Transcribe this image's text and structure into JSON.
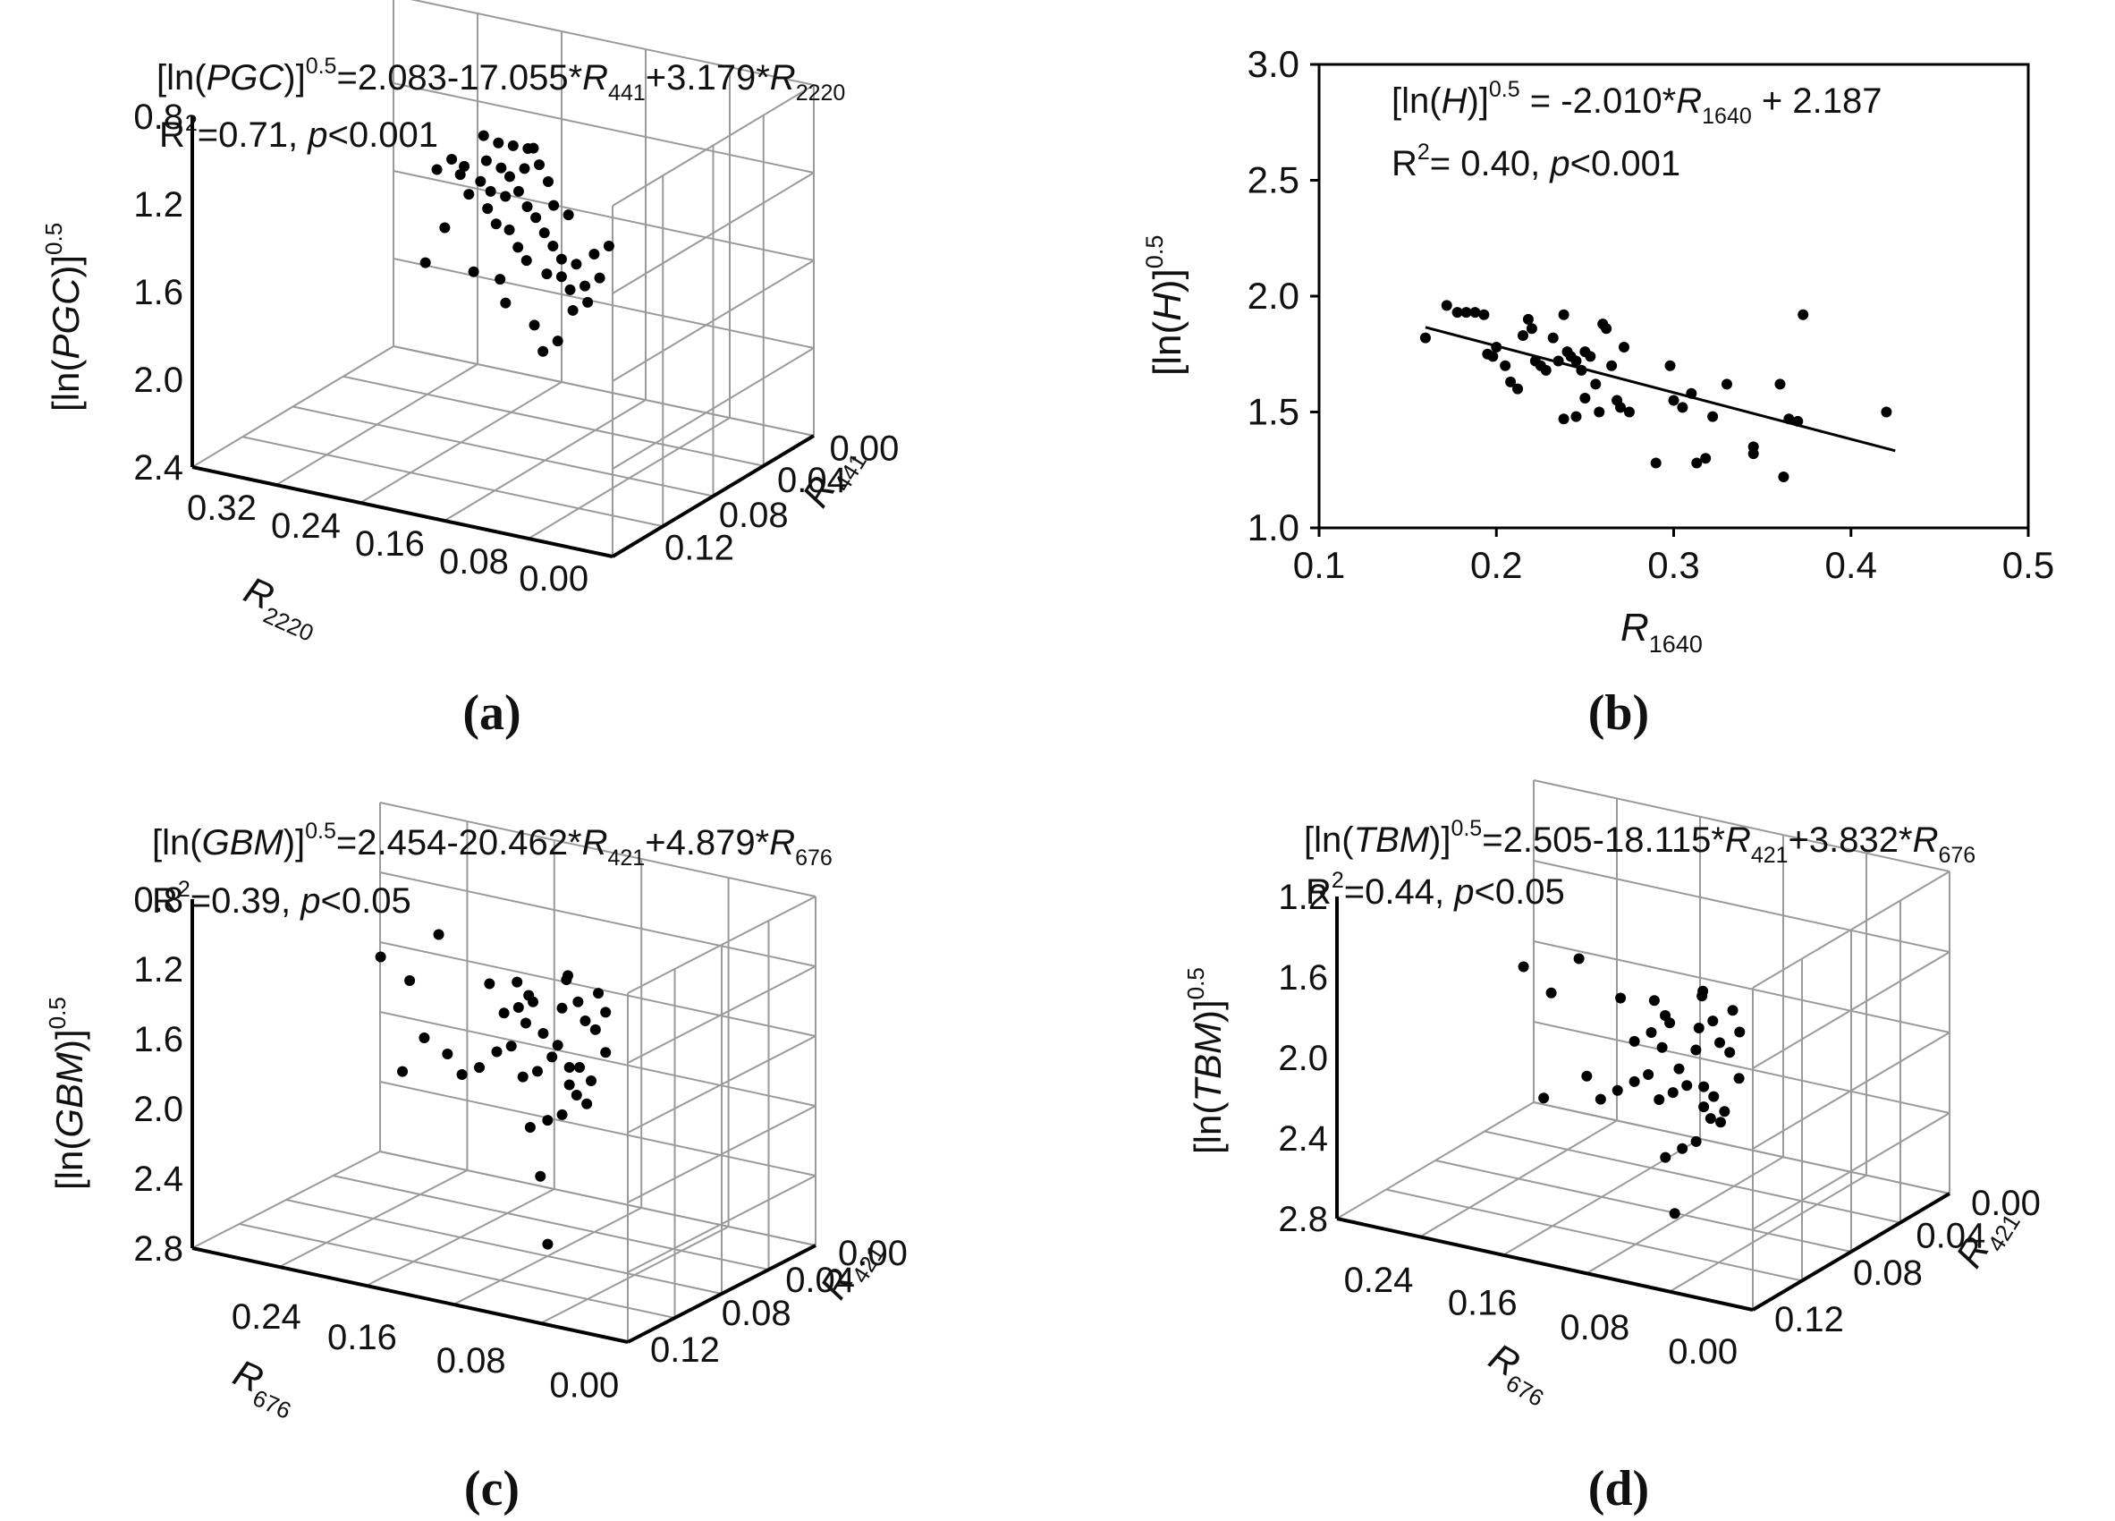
{
  "chart_data": [
    {
      "type": "scatter",
      "panel": "(a)",
      "dims": "3d",
      "equation": {
        "lhs": "[ln(",
        "var": "PGC",
        "rhs": ")]",
        "exp": "0.5",
        "body": "=2.083-17.055*",
        "t1": "R",
        "s1": "441",
        "mid": "+3.179*",
        "t2": "R",
        "s2": "2220"
      },
      "stats": {
        "pre": "R",
        "sup": "2",
        "mid": "=0.71, ",
        "p": "p",
        "post": "<0.001"
      },
      "zlabel": {
        "lhs": "[ln(",
        "var": "PGC",
        "rhs": ")]",
        "exp": "0.5"
      },
      "xlabel": {
        "t": "R",
        "s": "2220"
      },
      "ylabel": {
        "t": "R",
        "s": "441"
      },
      "zticks": [
        "2.4",
        "2.0",
        "1.6",
        "1.2",
        "0.8"
      ],
      "xticks": [
        "0.32",
        "0.24",
        "0.16",
        "0.08",
        "0.00"
      ],
      "yticks": [
        "0.12",
        "0.08",
        "0.04",
        "0.00"
      ],
      "zlim": [
        0.8,
        2.4
      ],
      "xlim": [
        0.36,
        0.0
      ],
      "ylim": [
        0.0,
        0.13
      ],
      "points": [
        [
          0.19,
          0.06,
          2.25
        ],
        [
          0.18,
          0.062,
          2.22
        ],
        [
          0.17,
          0.064,
          2.21
        ],
        [
          0.16,
          0.066,
          2.2
        ],
        [
          0.15,
          0.062,
          2.23
        ],
        [
          0.185,
          0.058,
          2.15
        ],
        [
          0.175,
          0.06,
          2.12
        ],
        [
          0.165,
          0.058,
          2.1
        ],
        [
          0.155,
          0.06,
          2.14
        ],
        [
          0.145,
          0.062,
          2.16
        ],
        [
          0.2,
          0.055,
          2.12
        ],
        [
          0.19,
          0.058,
          2.05
        ],
        [
          0.18,
          0.057,
          2.02
        ],
        [
          0.17,
          0.059,
          2.0
        ],
        [
          0.16,
          0.06,
          2.03
        ],
        [
          0.15,
          0.058,
          1.98
        ],
        [
          0.14,
          0.056,
          1.95
        ],
        [
          0.13,
          0.054,
          1.9
        ],
        [
          0.12,
          0.052,
          1.86
        ],
        [
          0.11,
          0.05,
          1.82
        ],
        [
          0.1,
          0.052,
          1.8
        ],
        [
          0.12,
          0.048,
          1.75
        ],
        [
          0.11,
          0.05,
          1.74
        ],
        [
          0.1,
          0.048,
          1.7
        ],
        [
          0.09,
          0.05,
          1.72
        ],
        [
          0.08,
          0.052,
          1.76
        ],
        [
          0.085,
          0.048,
          1.66
        ],
        [
          0.095,
          0.046,
          1.62
        ],
        [
          0.14,
          0.05,
          1.78
        ],
        [
          0.15,
          0.052,
          1.82
        ],
        [
          0.16,
          0.054,
          1.88
        ],
        [
          0.17,
          0.053,
          1.9
        ],
        [
          0.18,
          0.055,
          1.95
        ],
        [
          0.2,
          0.058,
          1.98
        ],
        [
          0.21,
          0.06,
          2.05
        ],
        [
          0.22,
          0.062,
          2.1
        ],
        [
          0.23,
          0.06,
          2.05
        ],
        [
          0.21,
          0.05,
          1.85
        ],
        [
          0.22,
          0.045,
          1.7
        ],
        [
          0.12,
          0.04,
          1.55
        ],
        [
          0.1,
          0.04,
          1.5
        ],
        [
          0.11,
          0.038,
          1.45
        ],
        [
          0.13,
          0.06,
          2.0
        ],
        [
          0.12,
          0.062,
          1.96
        ],
        [
          0.14,
          0.064,
          2.08
        ],
        [
          0.16,
          0.048,
          1.68
        ],
        [
          0.18,
          0.046,
          1.7
        ],
        [
          0.15,
          0.044,
          1.6
        ],
        [
          0.09,
          0.056,
          1.84
        ],
        [
          0.08,
          0.058,
          1.88
        ]
      ]
    },
    {
      "type": "scatter",
      "panel": "(b)",
      "dims": "2d",
      "equation": {
        "lhs": "[ln(",
        "var": "H",
        "rhs": ")]",
        "exp": "0.5",
        "body": " = -2.010*",
        "t1": "R",
        "s1": "1640",
        "mid": " + 2.187"
      },
      "stats": {
        "pre": "R",
        "sup": "2",
        "mid": "= 0.40, ",
        "p": "p",
        "post": "<0.001"
      },
      "ylabel": {
        "lhs": "[ln(",
        "var": "H",
        "rhs": ")]",
        "exp": "0.5"
      },
      "xlabel": {
        "t": "R",
        "s": "1640"
      },
      "xticks": [
        "0.1",
        "0.2",
        "0.3",
        "0.4",
        "0.5"
      ],
      "yticks": [
        "3.0",
        "2.5",
        "2.0",
        "1.5",
        "1.0"
      ],
      "xlim": [
        0.1,
        0.5
      ],
      "ylim": [
        1.0,
        3.0
      ],
      "fit": {
        "slope": -2.01,
        "intercept": 2.187,
        "x_range": [
          0.16,
          0.425
        ]
      },
      "points": [
        [
          0.16,
          1.82
        ],
        [
          0.172,
          1.96
        ],
        [
          0.178,
          1.93
        ],
        [
          0.183,
          1.93
        ],
        [
          0.188,
          1.93
        ],
        [
          0.193,
          1.92
        ],
        [
          0.195,
          1.75
        ],
        [
          0.198,
          1.74
        ],
        [
          0.2,
          1.78
        ],
        [
          0.205,
          1.7
        ],
        [
          0.208,
          1.63
        ],
        [
          0.212,
          1.6
        ],
        [
          0.215,
          1.83
        ],
        [
          0.218,
          1.9
        ],
        [
          0.22,
          1.86
        ],
        [
          0.222,
          1.72
        ],
        [
          0.225,
          1.7
        ],
        [
          0.228,
          1.68
        ],
        [
          0.232,
          1.82
        ],
        [
          0.235,
          1.72
        ],
        [
          0.238,
          1.92
        ],
        [
          0.24,
          1.76
        ],
        [
          0.242,
          1.74
        ],
        [
          0.245,
          1.72
        ],
        [
          0.248,
          1.68
        ],
        [
          0.25,
          1.76
        ],
        [
          0.253,
          1.74
        ],
        [
          0.256,
          1.62
        ],
        [
          0.26,
          1.88
        ],
        [
          0.262,
          1.86
        ],
        [
          0.265,
          1.7
        ],
        [
          0.268,
          1.55
        ],
        [
          0.27,
          1.52
        ],
        [
          0.272,
          1.78
        ],
        [
          0.238,
          1.47
        ],
        [
          0.245,
          1.48
        ],
        [
          0.25,
          1.56
        ],
        [
          0.258,
          1.5
        ],
        [
          0.275,
          1.5
        ],
        [
          0.29,
          1.28
        ],
        [
          0.298,
          1.7
        ],
        [
          0.3,
          1.55
        ],
        [
          0.305,
          1.52
        ],
        [
          0.31,
          1.58
        ],
        [
          0.313,
          1.28
        ],
        [
          0.318,
          1.3
        ],
        [
          0.322,
          1.48
        ],
        [
          0.33,
          1.62
        ],
        [
          0.345,
          1.35
        ],
        [
          0.345,
          1.32
        ],
        [
          0.36,
          1.62
        ],
        [
          0.362,
          1.22
        ],
        [
          0.365,
          1.47
        ],
        [
          0.37,
          1.46
        ],
        [
          0.373,
          1.92
        ],
        [
          0.42,
          1.5
        ]
      ]
    },
    {
      "type": "scatter",
      "panel": "(c)",
      "dims": "3d",
      "equation": {
        "lhs": "[ln(",
        "var": "GBM",
        "rhs": ")]",
        "exp": "0.5",
        "body": "=2.454-20.462*",
        "t1": "R",
        "s1": "421",
        "mid": "+4.879*",
        "t2": "R",
        "s2": "676"
      },
      "stats": {
        "pre": "R",
        "sup": "2",
        "mid": "=0.39, ",
        "p": "p",
        "post": "<0.05"
      },
      "zlabel": {
        "lhs": "[ln(",
        "var": "GBM",
        "rhs": ")]",
        "exp": "0.5"
      },
      "xlabel": {
        "t": "R",
        "s": "676"
      },
      "ylabel": {
        "t": "R",
        "s": "421"
      },
      "zticks": [
        "2.8",
        "2.4",
        "2.0",
        "1.6",
        "1.2",
        "0.8"
      ],
      "xticks": [
        "0.24",
        "0.16",
        "0.08",
        "0.00"
      ],
      "yticks": [
        "0.12",
        "0.08",
        "0.04",
        "0.00"
      ],
      "zlim": [
        0.8,
        2.8
      ],
      "xlim": [
        0.3,
        0.0
      ],
      "ylim": [
        0.0,
        0.13
      ],
      "points": [
        [
          0.22,
          0.05,
          2.4
        ],
        [
          0.2,
          0.05,
          2.3
        ],
        [
          0.18,
          0.05,
          2.6
        ],
        [
          0.15,
          0.055,
          2.35
        ],
        [
          0.14,
          0.055,
          2.2
        ],
        [
          0.13,
          0.055,
          2.25
        ],
        [
          0.12,
          0.055,
          2.3
        ],
        [
          0.12,
          0.05,
          2.2
        ],
        [
          0.11,
          0.052,
          2.15
        ],
        [
          0.1,
          0.052,
          2.1
        ],
        [
          0.1,
          0.055,
          2.3
        ],
        [
          0.09,
          0.056,
          2.35
        ],
        [
          0.085,
          0.056,
          2.25
        ],
        [
          0.08,
          0.058,
          2.2
        ],
        [
          0.09,
          0.05,
          2.0
        ],
        [
          0.1,
          0.048,
          2.05
        ],
        [
          0.11,
          0.048,
          1.95
        ],
        [
          0.12,
          0.048,
          1.9
        ],
        [
          0.13,
          0.05,
          2.05
        ],
        [
          0.14,
          0.05,
          2.0
        ],
        [
          0.095,
          0.054,
          2.5
        ],
        [
          0.09,
          0.05,
          1.9
        ],
        [
          0.085,
          0.05,
          1.85
        ],
        [
          0.08,
          0.052,
          1.8
        ],
        [
          0.07,
          0.055,
          2.1
        ],
        [
          0.075,
          0.06,
          2.3
        ],
        [
          0.08,
          0.06,
          2.4
        ],
        [
          0.15,
          0.048,
          1.9
        ],
        [
          0.16,
          0.046,
          1.85
        ],
        [
          0.17,
          0.046,
          1.95
        ],
        [
          0.2,
          0.045,
          1.8
        ],
        [
          0.18,
          0.04,
          2.05
        ],
        [
          0.1,
          0.045,
          1.7
        ],
        [
          0.11,
          0.043,
          1.65
        ],
        [
          0.09,
          0.045,
          1.75
        ],
        [
          0.1,
          0.04,
          1.4
        ],
        [
          0.09,
          0.035,
          1.05
        ],
        [
          0.12,
          0.052,
          2.35
        ],
        [
          0.13,
          0.054,
          2.4
        ],
        [
          0.1,
          0.058,
          2.45
        ],
        [
          0.085,
          0.052,
          2.0
        ],
        [
          0.075,
          0.05,
          1.95
        ]
      ]
    },
    {
      "type": "scatter",
      "panel": "(d)",
      "dims": "3d",
      "equation": {
        "lhs": "[ln(",
        "var": "TBM",
        "rhs": ")]",
        "exp": "0.5",
        "body": "=2.505-18.115*",
        "t1": "R",
        "s1": "421",
        "mid": "+3.832*",
        "t2": "R",
        "s2": "676"
      },
      "stats": {
        "pre": "R",
        "sup": "2",
        "mid": "=0.44, ",
        "p": "p",
        "post": "<0.05"
      },
      "zlabel": {
        "lhs": "[ln(",
        "var": "TBM",
        "rhs": ")]",
        "exp": "0.5"
      },
      "xlabel": {
        "t": "R",
        "s": "676"
      },
      "ylabel": {
        "t": "R",
        "s": "421"
      },
      "zticks": [
        "2.8",
        "2.4",
        "2.0",
        "1.6",
        "1.2"
      ],
      "xticks": [
        "0.24",
        "0.16",
        "0.08",
        "0.00"
      ],
      "yticks": [
        "0.12",
        "0.08",
        "0.04",
        "0.00"
      ],
      "zlim": [
        1.2,
        2.8
      ],
      "xlim": [
        0.3,
        0.0
      ],
      "ylim": [
        0.0,
        0.13
      ],
      "points": [
        [
          0.22,
          0.05,
          2.35
        ],
        [
          0.2,
          0.05,
          2.25
        ],
        [
          0.18,
          0.05,
          2.45
        ],
        [
          0.15,
          0.05,
          2.3
        ],
        [
          0.14,
          0.05,
          2.1
        ],
        [
          0.13,
          0.052,
          2.15
        ],
        [
          0.12,
          0.055,
          2.2
        ],
        [
          0.12,
          0.05,
          2.1
        ],
        [
          0.11,
          0.052,
          2.0
        ],
        [
          0.1,
          0.054,
          2.1
        ],
        [
          0.1,
          0.056,
          2.2
        ],
        [
          0.09,
          0.056,
          2.25
        ],
        [
          0.085,
          0.056,
          2.15
        ],
        [
          0.08,
          0.058,
          2.1
        ],
        [
          0.09,
          0.05,
          1.95
        ],
        [
          0.1,
          0.048,
          1.95
        ],
        [
          0.11,
          0.048,
          1.9
        ],
        [
          0.12,
          0.048,
          1.85
        ],
        [
          0.13,
          0.05,
          1.95
        ],
        [
          0.14,
          0.05,
          1.9
        ],
        [
          0.095,
          0.054,
          2.4
        ],
        [
          0.09,
          0.05,
          1.85
        ],
        [
          0.085,
          0.05,
          1.8
        ],
        [
          0.08,
          0.052,
          1.78
        ],
        [
          0.07,
          0.055,
          2.0
        ],
        [
          0.075,
          0.06,
          2.2
        ],
        [
          0.08,
          0.06,
          2.3
        ],
        [
          0.15,
          0.048,
          1.85
        ],
        [
          0.16,
          0.046,
          1.8
        ],
        [
          0.17,
          0.046,
          1.9
        ],
        [
          0.2,
          0.045,
          1.75
        ],
        [
          0.1,
          0.045,
          1.65
        ],
        [
          0.11,
          0.043,
          1.6
        ],
        [
          0.09,
          0.045,
          1.7
        ],
        [
          0.1,
          0.04,
          1.35
        ],
        [
          0.12,
          0.052,
          2.25
        ],
        [
          0.13,
          0.054,
          2.3
        ],
        [
          0.1,
          0.058,
          2.35
        ],
        [
          0.085,
          0.052,
          1.9
        ],
        [
          0.075,
          0.05,
          1.85
        ]
      ]
    }
  ]
}
